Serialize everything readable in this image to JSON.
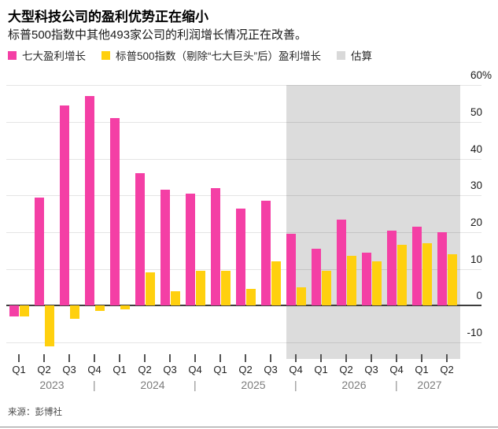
{
  "header": {
    "title": "大型科技公司的盈利优势正在缩小",
    "subtitle": "标普500指数中其他493家公司的利润增长情况正在改善。"
  },
  "legend": {
    "items": [
      {
        "label": "七大盈利增长",
        "color": "#f43fa5"
      },
      {
        "label": "标普500指数（剔除“七大巨头”后）盈利增长",
        "color": "#ffd00e"
      },
      {
        "label": "估算",
        "color": "#d9d9d9"
      }
    ]
  },
  "chart_data": {
    "type": "bar",
    "categories": [
      "Q1",
      "Q2",
      "Q3",
      "Q4",
      "Q1",
      "Q2",
      "Q3",
      "Q4",
      "Q1",
      "Q2",
      "Q3",
      "Q4",
      "Q1",
      "Q2",
      "Q3",
      "Q4",
      "Q1",
      "Q2"
    ],
    "years": [
      {
        "label": "2023",
        "from": 0,
        "to": 3
      },
      {
        "label": "2024",
        "from": 4,
        "to": 7
      },
      {
        "label": "2025",
        "from": 8,
        "to": 11
      },
      {
        "label": "2026",
        "from": 12,
        "to": 15
      },
      {
        "label": "2027",
        "from": 16,
        "to": 17
      }
    ],
    "series": [
      {
        "name": "七大盈利增长",
        "color": "#f43fa5",
        "values": [
          -3,
          29.5,
          54.5,
          57,
          51,
          36,
          31.5,
          30.5,
          32,
          26.5,
          28.5,
          19.5,
          15.5,
          23.5,
          14.5,
          20.5,
          21.5,
          20
        ]
      },
      {
        "name": "标普500指数（剔除“七大巨头”后）盈利增长",
        "color": "#ffd00e",
        "values": [
          -3,
          -11,
          -3.5,
          -1.5,
          -1,
          9,
          4,
          9.5,
          9.5,
          4.5,
          12,
          5,
          9.5,
          13.5,
          12,
          16.5,
          17,
          14
        ]
      }
    ],
    "estimate": {
      "label": "估算",
      "start_index": 11,
      "region_color": "#dcdcdc"
    },
    "y_axis": {
      "ticks": [
        60,
        50,
        40,
        30,
        20,
        10,
        0,
        -10
      ],
      "tick_labels": [
        "60%",
        "50",
        "40",
        "30",
        "20",
        "10",
        "0",
        "-10"
      ],
      "ylim": [
        -13.5,
        60
      ]
    },
    "grid": true,
    "legend_position": "top"
  },
  "footer": {
    "source": "来源：彭博社"
  }
}
